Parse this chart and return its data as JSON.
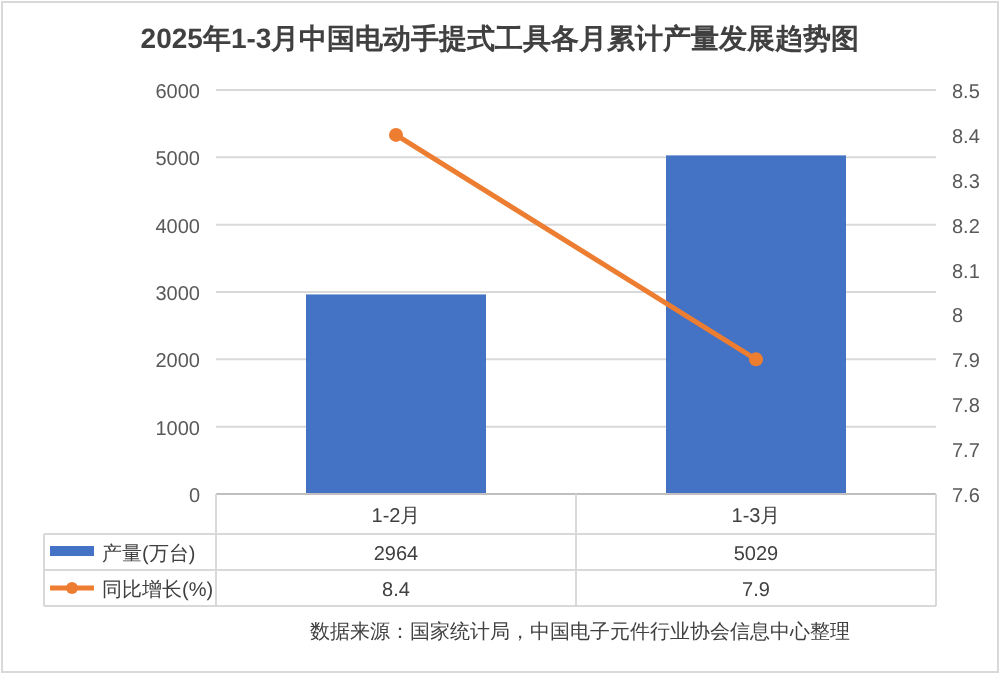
{
  "chart_data": {
    "type": "bar",
    "title": "2025年1-3月中国电动手提式工具各月累计产量发展趋势图",
    "categories": [
      "1-2月",
      "1-3月"
    ],
    "series": [
      {
        "name": "产量(万台)",
        "color": "#4472c4",
        "values": [
          2964,
          5029
        ]
      },
      {
        "name": "同比增长(%)",
        "type": "line",
        "axis": "y2",
        "color": "#ed7d31",
        "values": [
          8.4,
          7.9
        ],
        "marker": "circle"
      }
    ],
    "ylim": [
      0,
      6000
    ],
    "yticks": [
      0,
      1000,
      2000,
      3000,
      4000,
      5000,
      6000
    ],
    "y2lim": [
      7.6,
      8.5
    ],
    "y2ticks": [
      7.6,
      7.7,
      7.8,
      7.9,
      8,
      8.1,
      8.2,
      8.3,
      8.4,
      8.5
    ],
    "grid": "y",
    "legend": "bottom",
    "data_labels": true,
    "annotations": [
      "数据来源：国家统计局，中国电子元件行业协会信息中心整理"
    ]
  }
}
